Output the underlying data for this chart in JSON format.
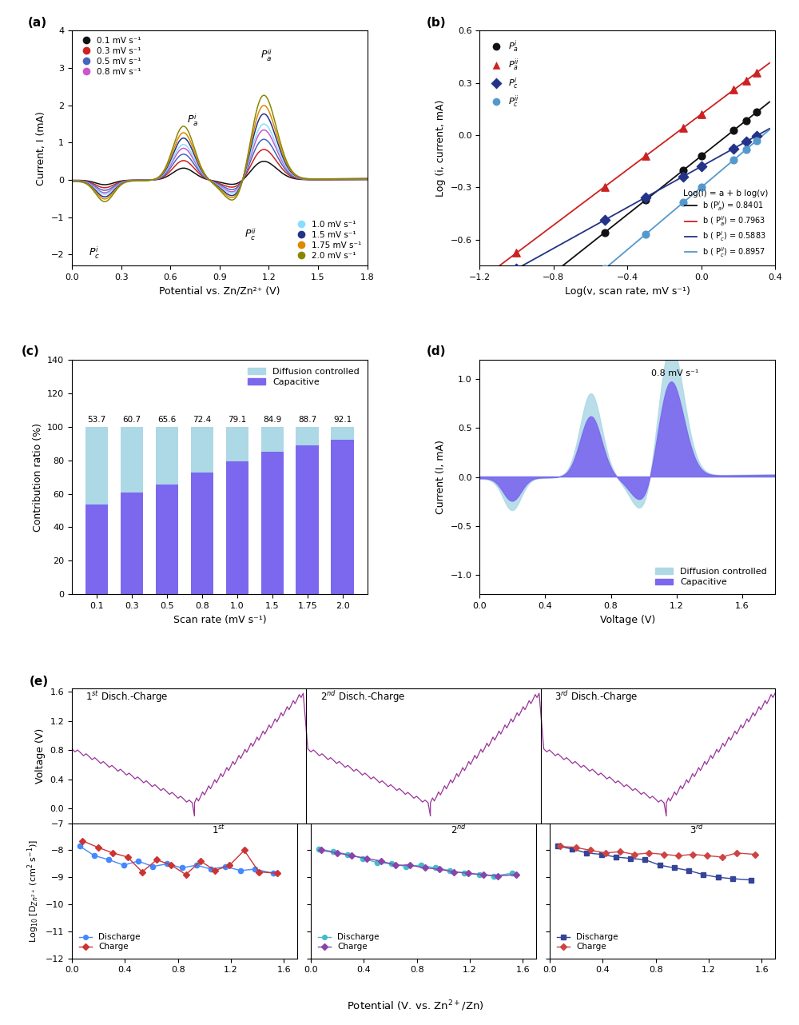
{
  "panel_a": {
    "xlabel": "Potential vs. Zn/Zn²⁺ (V)",
    "ylabel": "Current, I (mA)",
    "xlim": [
      0.0,
      1.8
    ],
    "ylim": [
      -2.3,
      4.0
    ],
    "colors": [
      "#111111",
      "#cc2222",
      "#4466bb",
      "#cc55cc",
      "#88ddff",
      "#223388",
      "#dd8800",
      "#888800"
    ],
    "legend1": [
      "0.1 mV s⁻¹",
      "0.3 mV s⁻¹",
      "0.5 mV s⁻¹",
      "0.8 mV s⁻¹"
    ],
    "legend2": [
      "1.0 mV s⁻¹",
      "1.5 mV s⁻¹",
      "1.75 mV s⁻¹",
      "2.0 mV s⁻¹"
    ],
    "scales": [
      0.22,
      0.36,
      0.48,
      0.59,
      0.66,
      0.78,
      0.88,
      1.0
    ]
  },
  "panel_b": {
    "xlabel": "Log(v, scan rate, mV s⁻¹)",
    "ylabel": "Log (i, current, mA)",
    "xlim": [
      -1.2,
      0.4
    ],
    "ylim": [
      -0.75,
      0.6
    ],
    "yticks": [
      -0.6,
      -0.3,
      0.0,
      0.3,
      0.6
    ],
    "xticks": [
      -1.2,
      -0.8,
      -0.4,
      0.0,
      0.4
    ],
    "legend_text": "Log(i) = a + b log(v)",
    "legend_lines": [
      {
        "label": "b (P$^{i}_{a}$) = 0.8401",
        "color": "#111111"
      },
      {
        "label": "b ( P$^{ii}_{a}$) = 0.7963",
        "color": "#cc2222"
      },
      {
        "label": "b ( P$^{i}_{c}$) = 0.5883",
        "color": "#223388"
      },
      {
        "label": "b ( P$^{ii}_{c}$) = 0.8957",
        "color": "#5599cc"
      }
    ]
  },
  "panel_c": {
    "xlabel": "Scan rate (mV s⁻¹)",
    "ylabel": "Contribution ratio (%)",
    "xlim_labels": [
      "0.1",
      "0.3",
      "0.5",
      "0.8",
      "1.0",
      "1.5",
      "1.75",
      "2.0"
    ],
    "ylim": [
      0,
      140
    ],
    "yticks": [
      0,
      20,
      40,
      60,
      80,
      100,
      120,
      140
    ],
    "capacitive": [
      53.7,
      60.7,
      65.6,
      72.4,
      79.1,
      84.9,
      88.7,
      92.1
    ],
    "color_cap": "#7B68EE",
    "color_diff": "#ADD8E6",
    "labels": [
      "53.7",
      "60.7",
      "65.6",
      "72.4",
      "79.1",
      "84.9",
      "88.7",
      "92.1"
    ]
  },
  "panel_d": {
    "xlabel": "Voltage (V)",
    "ylabel": "Current (I, mA)",
    "xlim": [
      0.0,
      1.8
    ],
    "ylim": [
      -1.2,
      1.2
    ],
    "annotation": "0.8 mV s⁻¹",
    "color_cap": "#7B68EE",
    "color_diff": "#ADD8E6"
  },
  "panel_e_top": {
    "ylabel": "Voltage (V)",
    "xlim": [
      0.0,
      1.7
    ],
    "ylim": [
      -0.2,
      1.65
    ],
    "yticks": [
      0.0,
      0.4,
      0.8,
      1.2,
      1.6
    ],
    "cycle_labels": [
      "1$^{st}$ Disch.-Charge",
      "2$^{nd}$ Disch.-Charge",
      "3$^{rd}$ Disch.-Charge"
    ],
    "line_color": "#993399"
  },
  "panel_e_bottom": {
    "xlabel": "Potential (V. vs. Zn$^{2+}$/Zn)",
    "ylabel": "Log$_{10}$ [D$_{Zn^{2+}}$ (cm$^{2}$ s$^{-1}$)]",
    "xlim": [
      0.0,
      1.7
    ],
    "ylim": [
      -12,
      -7
    ],
    "yticks": [
      -12,
      -11,
      -10,
      -9,
      -8,
      -7
    ],
    "cycle_labels": [
      "1$^{st}$",
      "2$^{nd}$",
      "3$^{rd}$"
    ],
    "discharge_colors": [
      "#4488ff",
      "#44bbcc",
      "#334499"
    ],
    "charge_colors": [
      "#cc3333",
      "#8844aa",
      "#cc4444"
    ],
    "discharge_markers": [
      "o",
      "o",
      "s"
    ],
    "charge_markers": [
      "D",
      "D",
      "D"
    ]
  }
}
